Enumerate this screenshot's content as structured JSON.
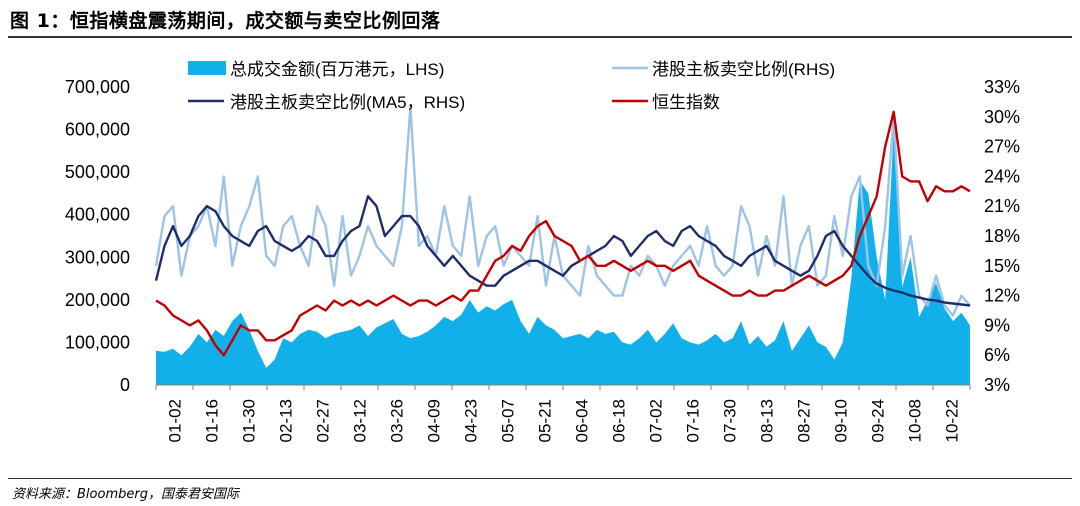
{
  "title": "图 1：恒指横盘震荡期间，成交额与卖空比例回落",
  "source": "资料来源：Bloomberg，国泰君安国际",
  "chart_data": {
    "type": "area+line",
    "title": "图 1：恒指横盘震荡期间，成交额与卖空比例回落",
    "x_tick_labels": [
      "01-02",
      "01-16",
      "01-30",
      "02-13",
      "02-27",
      "03-12",
      "03-26",
      "04-09",
      "04-23",
      "05-07",
      "05-21",
      "06-04",
      "06-18",
      "07-02",
      "07-16",
      "07-30",
      "08-13",
      "08-27",
      "09-10",
      "09-24",
      "10-08",
      "10-22"
    ],
    "left_axis": {
      "label": "LHS",
      "ylim": [
        0,
        700000
      ],
      "ticks": [
        "0",
        "100,000",
        "200,000",
        "300,000",
        "400,000",
        "500,000",
        "600,000",
        "700,000"
      ]
    },
    "right_axis": {
      "label": "RHS",
      "ylim": [
        3,
        33
      ],
      "ticks": [
        "3%",
        "6%",
        "9%",
        "12%",
        "15%",
        "18%",
        "21%",
        "24%",
        "27%",
        "30%",
        "33%"
      ]
    },
    "legend": [
      "总成交金额(百万港元，LHS)",
      "港股主板卖空比例(RHS)",
      "港股主板卖空比例(MA5，RHS)",
      "恒生指数"
    ],
    "colors": {
      "turnover": "#12b0ea",
      "short_ratio": "#9dc3e6",
      "short_ma5": "#1f2e6b",
      "hsi": "#c00000"
    },
    "series": [
      {
        "name": "总成交金额(百万港元，LHS)",
        "axis": "left",
        "type": "area",
        "values": [
          80000,
          78000,
          85000,
          70000,
          90000,
          120000,
          100000,
          130000,
          115000,
          150000,
          170000,
          130000,
          80000,
          40000,
          60000,
          110000,
          100000,
          120000,
          130000,
          125000,
          110000,
          120000,
          125000,
          130000,
          140000,
          115000,
          135000,
          145000,
          155000,
          120000,
          110000,
          115000,
          125000,
          140000,
          160000,
          150000,
          165000,
          200000,
          170000,
          185000,
          175000,
          190000,
          200000,
          150000,
          120000,
          160000,
          140000,
          130000,
          110000,
          115000,
          120000,
          110000,
          130000,
          120000,
          125000,
          100000,
          95000,
          110000,
          130000,
          100000,
          120000,
          145000,
          110000,
          100000,
          95000,
          105000,
          120000,
          100000,
          110000,
          150000,
          95000,
          115000,
          90000,
          105000,
          150000,
          80000,
          110000,
          140000,
          100000,
          90000,
          60000,
          100000,
          250000,
          480000,
          450000,
          300000,
          200000,
          600000,
          230000,
          300000,
          160000,
          200000,
          240000,
          180000,
          150000,
          170000,
          140000
        ]
      },
      {
        "name": "港股主板卖空比例(RHS)",
        "axis": "right",
        "type": "line",
        "values": [
          15,
          20,
          21,
          14,
          18,
          19,
          21,
          17,
          24,
          15,
          19,
          21,
          24,
          16,
          15,
          19,
          20,
          17,
          15,
          21,
          19,
          13,
          20,
          14,
          16,
          19,
          17,
          16,
          15,
          19,
          31,
          17,
          18,
          16,
          21,
          17,
          16,
          22,
          15,
          18,
          19,
          15,
          17,
          16,
          15,
          20,
          13,
          18,
          14,
          13,
          12,
          17,
          14,
          13,
          12,
          12,
          15,
          14,
          16,
          15,
          13,
          15,
          16,
          17,
          15,
          19,
          15,
          14,
          15,
          21,
          19,
          14,
          18,
          15,
          22,
          13,
          17,
          19,
          13,
          14,
          20,
          16,
          22,
          24,
          15,
          13,
          19,
          30,
          14,
          18,
          12,
          11,
          14,
          11,
          10,
          12,
          11
        ]
      },
      {
        "name": "港股主板卖空比例(MA5，RHS)",
        "axis": "right",
        "type": "line",
        "values": [
          13.5,
          17,
          19,
          17,
          18,
          20,
          21,
          20.5,
          19,
          18,
          17.5,
          17,
          18.5,
          19,
          17.5,
          17,
          16.5,
          17,
          18,
          17.5,
          16,
          16,
          17.5,
          18.5,
          19,
          22,
          21,
          18,
          19,
          20,
          20,
          19,
          17,
          16,
          15,
          16,
          15,
          14,
          13.5,
          13,
          13,
          14,
          14.5,
          15,
          15.5,
          15.5,
          15,
          14.5,
          14,
          15,
          15.5,
          16,
          16.5,
          17,
          18,
          17.5,
          16,
          17,
          18,
          18.5,
          17.5,
          17,
          18.5,
          19,
          18,
          17.5,
          17,
          16,
          15.5,
          15,
          16,
          16.5,
          17,
          15.5,
          15,
          14.5,
          14,
          14.5,
          16,
          18,
          18.5,
          17,
          16,
          15,
          14,
          13.2,
          12.8,
          12.5,
          12.3,
          12,
          11.8,
          11.6,
          11.5,
          11.3,
          11.2,
          11.1,
          11
        ]
      },
      {
        "name": "恒生指数",
        "axis": "right",
        "type": "line",
        "values": [
          11.5,
          11,
          10,
          9.5,
          9,
          9.5,
          8.5,
          7,
          6,
          7.5,
          9,
          8.5,
          8.5,
          7.5,
          7.5,
          8,
          8.5,
          10,
          10.5,
          11,
          10.5,
          11.5,
          11,
          11.5,
          11,
          11.5,
          11,
          11.5,
          12,
          11.5,
          11,
          11.5,
          11.5,
          11,
          11.5,
          12,
          11.5,
          12.5,
          12.5,
          14,
          15.5,
          16,
          17,
          16.5,
          18,
          19,
          19.5,
          18,
          17.5,
          17,
          15.5,
          16,
          15,
          15,
          15.5,
          15,
          14.5,
          15,
          15.5,
          15,
          15,
          14.5,
          15,
          15.5,
          14,
          13.5,
          13,
          12.5,
          12,
          12,
          12.5,
          12,
          12,
          12.5,
          12.5,
          13,
          13.5,
          14,
          13.5,
          13,
          13.5,
          14,
          15,
          18,
          20,
          22,
          27,
          30.5,
          24,
          23.5,
          23.5,
          21.5,
          23,
          22.5,
          22.5,
          23,
          22.5
        ]
      }
    ]
  }
}
